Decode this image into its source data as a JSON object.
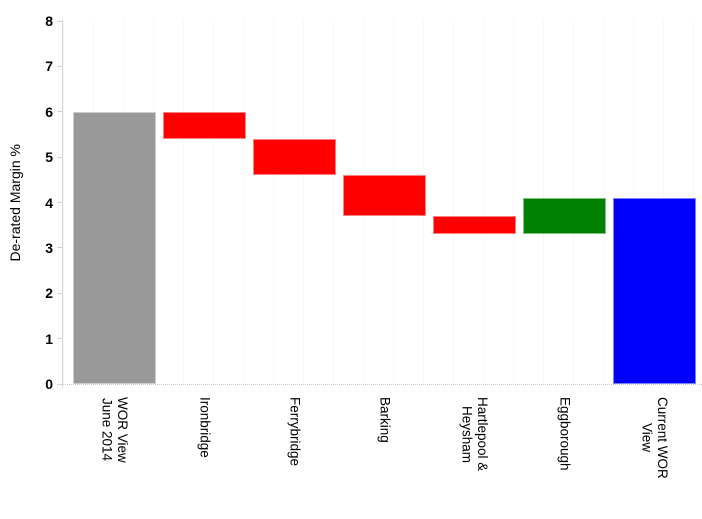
{
  "page": {
    "background": "#ffffff"
  },
  "chart_data": {
    "type": "bar",
    "subtype": "waterfall",
    "title": "",
    "xlabel": "",
    "ylabel": "De-rated Margin %",
    "ylim": [
      0,
      8
    ],
    "ytick_step": 1,
    "yticks": [
      "0",
      "1",
      "2",
      "3",
      "4",
      "5",
      "6",
      "7",
      "8"
    ],
    "legend": "none",
    "grid": "none",
    "categories": [
      "WOR View June 2014",
      "Ironbridge",
      "Ferrybridge",
      "Barking",
      "Hartlepool & Heysham",
      "Eggborough",
      "Current WOR View"
    ],
    "bars": [
      {
        "label_lines": [
          "WOR View",
          "June 2014"
        ],
        "from": 0,
        "to": 6.0,
        "change": null,
        "color": "#999999",
        "role": "start-total"
      },
      {
        "label_lines": [
          "Ironbridge"
        ],
        "from": 6.0,
        "to": 5.4,
        "change": -0.6,
        "color": "#FF0000",
        "role": "decrease"
      },
      {
        "label_lines": [
          "Ferrybridge"
        ],
        "from": 5.4,
        "to": 4.6,
        "change": -0.8,
        "color": "#FF0000",
        "role": "decrease"
      },
      {
        "label_lines": [
          "Barking"
        ],
        "from": 4.6,
        "to": 3.7,
        "change": -0.9,
        "color": "#FF0000",
        "role": "decrease"
      },
      {
        "label_lines": [
          "Hartlepool &",
          "Heysham"
        ],
        "from": 3.7,
        "to": 3.3,
        "change": -0.4,
        "color": "#FF0000",
        "role": "decrease"
      },
      {
        "label_lines": [
          "Eggborough"
        ],
        "from": 3.3,
        "to": 4.1,
        "change": 0.8,
        "color": "#008000",
        "role": "increase"
      },
      {
        "label_lines": [
          "Current WOR",
          "View"
        ],
        "from": 0,
        "to": 4.1,
        "change": null,
        "color": "#0000FF",
        "role": "end-total"
      }
    ],
    "axis_colors": {
      "axis_line": "#d6d6d6",
      "tick_label": "#000000",
      "category_label": "#000000"
    }
  }
}
